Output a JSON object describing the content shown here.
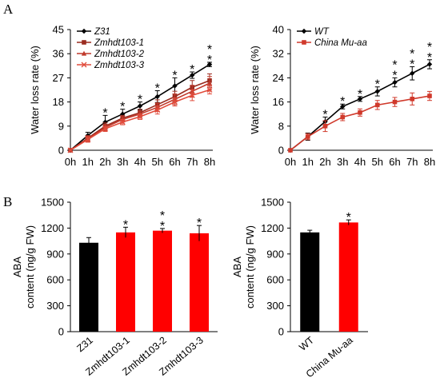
{
  "panels": {
    "a_label": "A",
    "b_label": "B"
  },
  "chart_data": [
    {
      "type": "line",
      "panel": "A",
      "ylabel": "Water loss rate (%)",
      "xlabel": "",
      "categories": [
        "0h",
        "1h",
        "2h",
        "3h",
        "4h",
        "5h",
        "6h",
        "7h",
        "8h"
      ],
      "ylim": [
        0,
        45
      ],
      "yticks": [
        0,
        9,
        18,
        27,
        36,
        45
      ],
      "legend_position": "top-left",
      "series": [
        {
          "name": "Z31",
          "color": "#000000",
          "marker": "diamond",
          "values": [
            0,
            5.5,
            10.5,
            13.5,
            16.5,
            20,
            24,
            28,
            32
          ],
          "errors": [
            0,
            1.2,
            2.5,
            1.8,
            1.5,
            2.2,
            3,
            1.2,
            0.8
          ]
        },
        {
          "name": "Zmhdt103-1",
          "color": "#9a2b1f",
          "marker": "square",
          "values": [
            0,
            4.5,
            9,
            12,
            14,
            17,
            20,
            23.5,
            26
          ],
          "errors": [
            0,
            1,
            1.2,
            1,
            1.3,
            1.8,
            2,
            2.5,
            2.5
          ]
        },
        {
          "name": "Zmhdt103-2",
          "color": "#c0392b",
          "marker": "triangle",
          "values": [
            0,
            4.2,
            8.5,
            11.5,
            13.5,
            16,
            19,
            22,
            25
          ],
          "errors": [
            0,
            1,
            1.2,
            1,
            1.2,
            1.5,
            2,
            2.2,
            2.5
          ]
        },
        {
          "name": "Zmhdt103-3",
          "color": "#e14b3b",
          "marker": "x",
          "values": [
            0,
            4,
            8,
            10.5,
            12.5,
            15,
            18,
            20.5,
            22.5
          ],
          "errors": [
            0,
            1,
            1,
            1,
            1,
            1.5,
            1.5,
            2,
            1.5
          ]
        }
      ],
      "annotations": [
        {
          "x": "2h",
          "text": "*"
        },
        {
          "x": "3h",
          "text": "*"
        },
        {
          "x": "4h",
          "text": "*"
        },
        {
          "x": "5h",
          "text": "*"
        },
        {
          "x": "6h",
          "text": "*"
        },
        {
          "x": "7h",
          "text": "*"
        },
        {
          "x": "8h",
          "text": "* *"
        }
      ]
    },
    {
      "type": "line",
      "panel": "A",
      "ylabel": "Water loss rate (%)",
      "xlabel": "",
      "categories": [
        "0h",
        "1h",
        "2h",
        "3h",
        "4h",
        "5h",
        "6h",
        "7h",
        "8h"
      ],
      "ylim": [
        0,
        40
      ],
      "yticks": [
        0,
        8,
        16,
        24,
        32,
        40
      ],
      "legend_position": "top-left",
      "series": [
        {
          "name": "WT",
          "color": "#000000",
          "marker": "diamond",
          "values": [
            0,
            4.5,
            9.5,
            14.5,
            17,
            19.5,
            22.5,
            25.5,
            28.5
          ],
          "errors": [
            0,
            1.2,
            1.5,
            0.8,
            0.8,
            1.5,
            1.5,
            2.2,
            1.5
          ]
        },
        {
          "name": "China Mu-aa",
          "color": "#d0392b",
          "marker": "square",
          "values": [
            0,
            4.5,
            8,
            11,
            12.5,
            15,
            16,
            17,
            18
          ],
          "errors": [
            0,
            1,
            1.8,
            1.2,
            1.2,
            1.5,
            1.5,
            2,
            1.5
          ]
        }
      ],
      "annotations": [
        {
          "x": "2h",
          "text": "*"
        },
        {
          "x": "3h",
          "text": "*"
        },
        {
          "x": "4h",
          "text": "*"
        },
        {
          "x": "5h",
          "text": "*"
        },
        {
          "x": "6h",
          "text": "* *"
        },
        {
          "x": "7h",
          "text": "* *"
        },
        {
          "x": "8h",
          "text": "* *"
        }
      ]
    },
    {
      "type": "bar",
      "panel": "B",
      "ylabel_line1": "ABA",
      "ylabel_line2": "content (ng/g  FW)",
      "categories": [
        "Z31",
        "Zmhdt103-1",
        "Zmhdt103-2",
        "Zmhdt103-3"
      ],
      "values": [
        1030,
        1150,
        1170,
        1140
      ],
      "errors": [
        60,
        60,
        25,
        90
      ],
      "colors": [
        "#000000",
        "#ff0000",
        "#ff0000",
        "#ff0000"
      ],
      "ylim": [
        0,
        1500
      ],
      "yticks": [
        0,
        300,
        600,
        900,
        1200,
        1500
      ],
      "annotations": [
        "",
        "*",
        "* *",
        "*"
      ]
    },
    {
      "type": "bar",
      "panel": "B",
      "ylabel_line1": "ABA",
      "ylabel_line2": "content (ng/g  FW)",
      "categories": [
        "WT",
        "China Mu-aa"
      ],
      "values": [
        1150,
        1265
      ],
      "errors": [
        25,
        30
      ],
      "colors": [
        "#000000",
        "#ff0000"
      ],
      "ylim": [
        0,
        1500
      ],
      "yticks": [
        0,
        300,
        600,
        900,
        1200,
        1500
      ],
      "annotations": [
        "",
        "*"
      ]
    }
  ]
}
